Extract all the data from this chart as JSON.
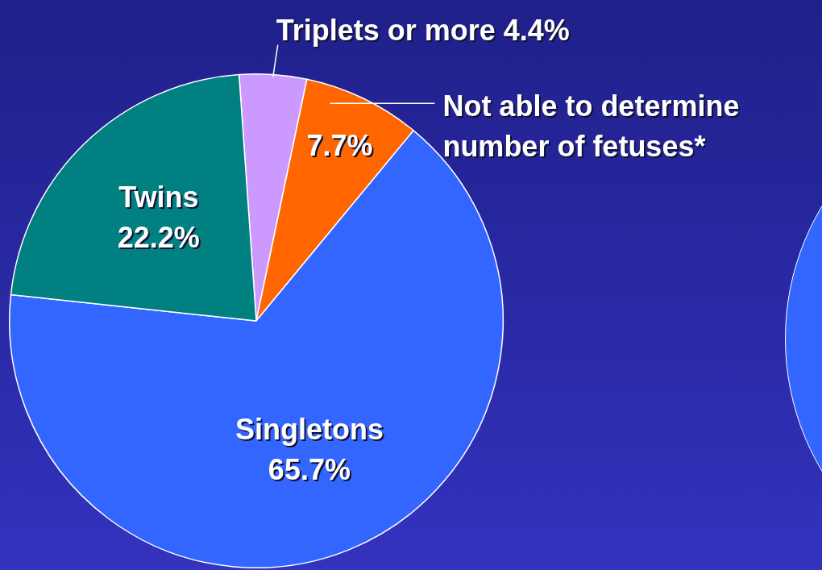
{
  "chart_data": {
    "type": "pie",
    "categories": [
      "Triplets or more",
      "Not able to determine number of fetuses*",
      "Singletons",
      "Twins"
    ],
    "values": [
      4.4,
      7.7,
      65.7,
      22.2
    ],
    "value_labels": [
      "4.4%",
      "7.7%",
      "65.7%",
      "22.2%"
    ],
    "colors": [
      "#cc99ff",
      "#ff6600",
      "#3366ff",
      "#008080"
    ],
    "legend": false
  }
}
